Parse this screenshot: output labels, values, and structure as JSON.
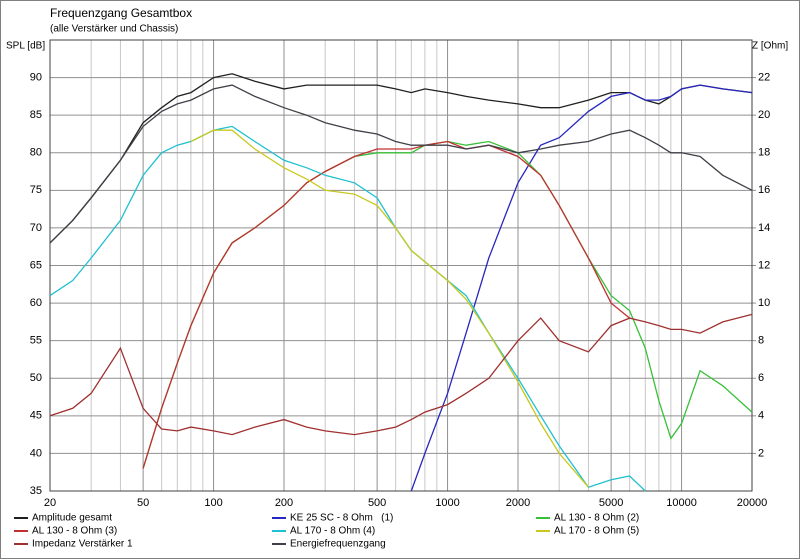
{
  "chart_data": {
    "type": "line",
    "title": "Frequenzgang Gesamtbox",
    "subtitle": "(alle Verstärker und Chassis)",
    "y_label": "SPL [dB]",
    "y2_label": "Z [Ohm]",
    "xscale": "log",
    "grid": true,
    "xlim": [
      20,
      20000
    ],
    "xticks": [
      20,
      50,
      100,
      200,
      500,
      1000,
      2000,
      5000,
      10000,
      20000
    ],
    "xgrid_minor": [
      30,
      40,
      60,
      70,
      80,
      90,
      300,
      400,
      600,
      700,
      800,
      900,
      3000,
      4000,
      6000,
      7000,
      8000,
      9000
    ],
    "ylim": [
      35,
      95
    ],
    "yticks": [
      35,
      40,
      45,
      50,
      55,
      60,
      65,
      70,
      75,
      80,
      85,
      90
    ],
    "y2lim": [
      0,
      24
    ],
    "y2ticks": [
      2,
      4,
      6,
      8,
      10,
      12,
      14,
      16,
      18,
      20,
      22
    ],
    "x": [
      20,
      25,
      30,
      40,
      50,
      60,
      70,
      80,
      100,
      120,
      150,
      200,
      250,
      300,
      400,
      500,
      600,
      700,
      800,
      1000,
      1200,
      1500,
      2000,
      2500,
      3000,
      4000,
      5000,
      6000,
      7000,
      8000,
      9000,
      10000,
      12000,
      15000,
      20000
    ],
    "series": [
      {
        "name": "Amplitude gesamt",
        "color": "#202020",
        "values": [
          68,
          71,
          74,
          79,
          84,
          86,
          87.5,
          88,
          90,
          90.5,
          89.5,
          88.5,
          89,
          89,
          89,
          89,
          88.5,
          88,
          88.5,
          88,
          87.5,
          87,
          86.5,
          86,
          86,
          87,
          88,
          88,
          87,
          86.5,
          87.5,
          88.5,
          89,
          88.5,
          88
        ]
      },
      {
        "name": "KE 25 SC - 8 Ohm   (1)",
        "color": "#2828c0",
        "values": [
          null,
          null,
          null,
          null,
          null,
          null,
          null,
          null,
          null,
          null,
          null,
          null,
          null,
          null,
          null,
          null,
          null,
          35,
          40,
          48,
          56,
          66,
          76,
          81,
          82,
          85.5,
          87.5,
          88,
          87,
          87,
          87.5,
          88.5,
          89,
          88.5,
          88
        ]
      },
      {
        "name": "AL 130 - 8 Ohm (2)",
        "color": "#38c038",
        "values": [
          null,
          null,
          null,
          null,
          38,
          46,
          52,
          57,
          64,
          68,
          70,
          73,
          76,
          77.5,
          79.5,
          80,
          80,
          80,
          81,
          81.5,
          81,
          81.5,
          80,
          77,
          73,
          66,
          61,
          59,
          54,
          47,
          42,
          44,
          51,
          49,
          45.5
        ]
      },
      {
        "name": "AL 130 - 8 Ohm (3)",
        "color": "#c03030",
        "values": [
          null,
          null,
          null,
          null,
          38,
          46,
          52,
          57,
          64,
          68,
          70,
          73,
          76,
          77.5,
          79.5,
          80.5,
          80.5,
          80.5,
          81,
          81.5,
          80.5,
          81,
          79.5,
          77,
          73,
          66,
          60,
          58,
          null,
          null,
          null,
          null,
          null,
          null,
          null
        ]
      },
      {
        "name": "AL 170 - 8 Ohm (4)",
        "color": "#20c0d0",
        "values": [
          61,
          63,
          66,
          71,
          77,
          80,
          81,
          81.5,
          83,
          83.5,
          81.5,
          79,
          78,
          77,
          76,
          74,
          70,
          67,
          65.5,
          63,
          61,
          56,
          50,
          45,
          41,
          35.5,
          36.5,
          37,
          35,
          null,
          null,
          null,
          null,
          null,
          null
        ]
      },
      {
        "name": "AL 170 - 8 Ohm (5)",
        "color": "#c8c820",
        "values": [
          null,
          null,
          null,
          null,
          null,
          null,
          null,
          81.5,
          83,
          83,
          80.5,
          78,
          76.5,
          75,
          74.5,
          73,
          70,
          67,
          65.5,
          63,
          60.5,
          56,
          49.5,
          44,
          40,
          35.5,
          null,
          null,
          null,
          null,
          null,
          null,
          null,
          null,
          null
        ]
      },
      {
        "name": "Impedanz Verstärker 1",
        "color": "#a03030",
        "axis": "y2",
        "values": [
          4.0,
          4.4,
          5.2,
          7.6,
          4.4,
          3.3,
          3.2,
          3.4,
          3.2,
          3.0,
          3.4,
          3.8,
          3.4,
          3.2,
          3.0,
          3.2,
          3.4,
          3.8,
          4.2,
          4.6,
          5.2,
          6.0,
          8.0,
          9.2,
          8.0,
          7.4,
          8.8,
          9.2,
          9.0,
          8.8,
          8.6,
          8.6,
          8.4,
          9.0,
          9.4
        ]
      },
      {
        "name": "Energiefrequenzgang",
        "color": "#404048",
        "values": [
          68,
          71,
          74,
          79,
          83.5,
          85.5,
          86.5,
          87,
          88.5,
          89,
          87.5,
          86,
          85,
          84,
          83,
          82.5,
          81.5,
          81,
          81,
          81,
          80.5,
          81,
          80,
          80.5,
          81,
          81.5,
          82.5,
          83,
          82,
          81,
          80,
          80,
          79.5,
          77,
          75
        ]
      }
    ]
  }
}
